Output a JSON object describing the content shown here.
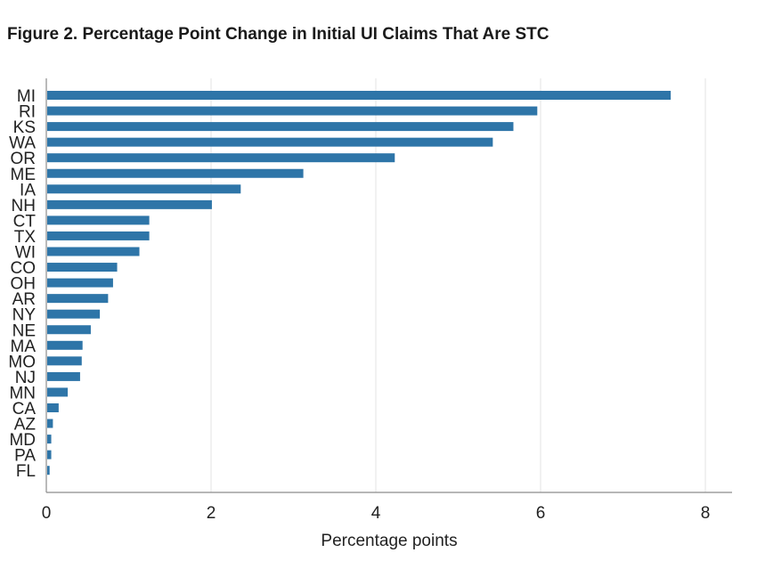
{
  "title": "Figure 2. Percentage Point Change in Initial UI Claims That Are STC",
  "chart_data": {
    "type": "bar",
    "orientation": "horizontal",
    "title": "Figure 2. Percentage Point Change in Initial UI Claims That Are STC",
    "xlabel": "Percentage points",
    "ylabel": "",
    "xlim": [
      0,
      8.35
    ],
    "xticks": [
      0,
      2,
      4,
      6,
      8
    ],
    "grid": true,
    "bar_color": "#2e75a8",
    "categories": [
      "MI",
      "RI",
      "KS",
      "WA",
      "OR",
      "ME",
      "IA",
      "NH",
      "CT",
      "TX",
      "WI",
      "CO",
      "OH",
      "AR",
      "NY",
      "NE",
      "MA",
      "MO",
      "NJ",
      "MN",
      "CA",
      "AZ",
      "MD",
      "PA",
      "FL"
    ],
    "values": [
      7.58,
      5.96,
      5.67,
      5.42,
      4.23,
      3.12,
      2.36,
      2.01,
      1.25,
      1.25,
      1.13,
      0.86,
      0.81,
      0.75,
      0.65,
      0.54,
      0.44,
      0.43,
      0.41,
      0.26,
      0.15,
      0.08,
      0.06,
      0.06,
      0.04
    ]
  }
}
